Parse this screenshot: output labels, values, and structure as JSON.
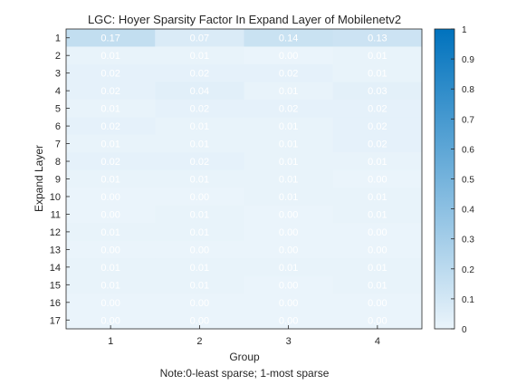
{
  "chart_data": {
    "type": "heatmap",
    "title": "LGC: Hoyer Sparsity Factor In Expand Layer of Mobilenetv2",
    "xlabel": "Group",
    "ylabel": "Expand Layer",
    "note": "Note:0-least sparse; 1-most sparse",
    "x_categories": [
      "1",
      "2",
      "3",
      "4"
    ],
    "y_categories": [
      "1",
      "2",
      "3",
      "4",
      "5",
      "6",
      "7",
      "8",
      "9",
      "10",
      "11",
      "12",
      "13",
      "14",
      "15",
      "16",
      "17"
    ],
    "values": [
      [
        0.17,
        0.07,
        0.14,
        0.13
      ],
      [
        0.01,
        0.01,
        0.0,
        0.01
      ],
      [
        0.02,
        0.02,
        0.02,
        0.01
      ],
      [
        0.02,
        0.04,
        0.01,
        0.03
      ],
      [
        0.01,
        0.02,
        0.02,
        0.02
      ],
      [
        0.02,
        0.01,
        0.01,
        0.02
      ],
      [
        0.01,
        0.01,
        0.01,
        0.02
      ],
      [
        0.02,
        0.02,
        0.01,
        0.01
      ],
      [
        0.01,
        0.01,
        0.01,
        0.0
      ],
      [
        0.0,
        0.0,
        0.01,
        0.01
      ],
      [
        0.0,
        0.01,
        0.0,
        0.01
      ],
      [
        0.01,
        0.01,
        0.0,
        0.0
      ],
      [
        0.0,
        0.0,
        0.0,
        0.0
      ],
      [
        0.01,
        0.01,
        0.01,
        0.01
      ],
      [
        0.01,
        0.01,
        0.0,
        0.01
      ],
      [
        0.0,
        0.0,
        0.0,
        0.0
      ],
      [
        0.0,
        0.0,
        0.0,
        0.0
      ]
    ],
    "color_range": [
      0,
      1
    ],
    "colorbar_ticks": [
      "0",
      "0.1",
      "0.2",
      "0.3",
      "0.4",
      "0.5",
      "0.6",
      "0.7",
      "0.8",
      "0.9",
      "1"
    ],
    "colormap": [
      "#eaf4fb",
      "#0072bd"
    ],
    "cell_text_color": "#ffffff"
  }
}
